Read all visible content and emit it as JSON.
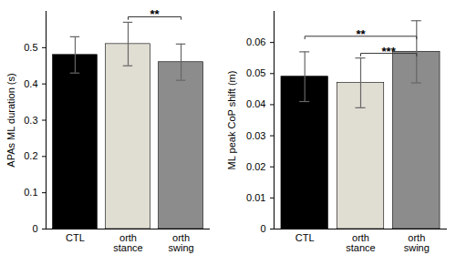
{
  "chart_data": [
    {
      "type": "bar",
      "ylabel": "APAs ML duration (s)",
      "categories": [
        "CTL",
        "orth stance",
        "orth swing"
      ],
      "values": [
        0.48,
        0.51,
        0.46
      ],
      "errors": [
        0.05,
        0.06,
        0.05
      ],
      "colors": [
        "#000000",
        "#e0ddd3",
        "#8c8c8c"
      ],
      "ylim": [
        0,
        0.6
      ],
      "yticks": [
        0,
        0.1,
        0.2,
        0.3,
        0.4,
        0.5
      ],
      "annotations": [
        {
          "from": "orth stance",
          "to": "orth swing",
          "text": "**",
          "y": 0.585
        }
      ]
    },
    {
      "type": "bar",
      "ylabel": "ML peak CoP shift (m)",
      "categories": [
        "CTL",
        "orth stance",
        "orth swing"
      ],
      "values": [
        0.049,
        0.047,
        0.057
      ],
      "errors": [
        0.008,
        0.008,
        0.01
      ],
      "colors": [
        "#000000",
        "#e0ddd3",
        "#8c8c8c"
      ],
      "ylim": [
        0,
        0.07
      ],
      "yticks": [
        0,
        0.01,
        0.02,
        0.03,
        0.04,
        0.05,
        0.06
      ],
      "annotations": [
        {
          "from": "CTL",
          "to": "orth swing",
          "text": "**",
          "y": 0.062
        },
        {
          "from": "orth stance",
          "to": "orth swing",
          "text": "***",
          "y": 0.0565
        }
      ]
    }
  ]
}
